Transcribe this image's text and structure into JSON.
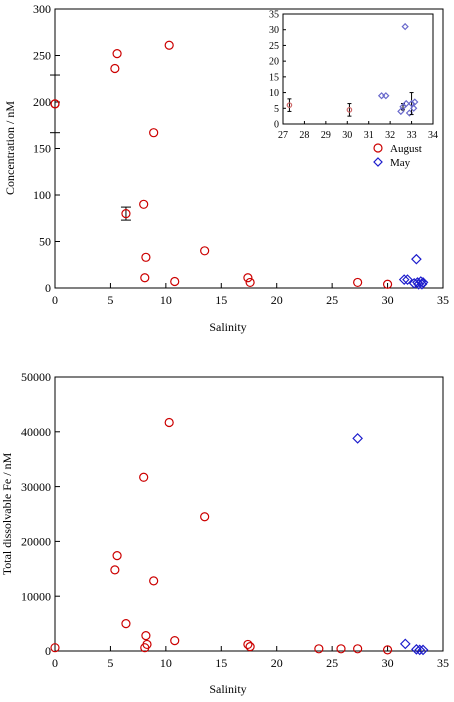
{
  "chart_data": [
    {
      "type": "scatter",
      "xlabel": "Salinity",
      "ylabel": "Concentration / nM",
      "xlim": [
        0,
        35
      ],
      "ylim": [
        0,
        300
      ],
      "xticks": [
        "0",
        "5",
        "10",
        "15",
        "20",
        "25",
        "30",
        "35"
      ],
      "yticks": [
        "0",
        "50",
        "100",
        "150",
        "200",
        "250",
        "300"
      ],
      "legend": {
        "placement": "right",
        "entries": [
          "August",
          "May"
        ]
      },
      "series": [
        {
          "name": "August",
          "marker": "circle",
          "color": "#cc0000",
          "points": [
            {
              "x": 0.0,
              "y": 198,
              "err": 0
            },
            {
              "x": 0.0,
              "y": 198,
              "err": 31
            },
            {
              "x": 5.4,
              "y": 236,
              "err": 0
            },
            {
              "x": 5.6,
              "y": 252,
              "err": 0
            },
            {
              "x": 6.4,
              "y": 80,
              "err": 7
            },
            {
              "x": 8.0,
              "y": 90,
              "err": 0
            },
            {
              "x": 8.2,
              "y": 33,
              "err": 0
            },
            {
              "x": 8.1,
              "y": 11,
              "err": 0
            },
            {
              "x": 8.9,
              "y": 167,
              "err": 0
            },
            {
              "x": 10.3,
              "y": 261,
              "err": 0
            },
            {
              "x": 10.8,
              "y": 7,
              "err": 0
            },
            {
              "x": 13.5,
              "y": 40,
              "err": 0
            },
            {
              "x": 17.4,
              "y": 11,
              "err": 0
            },
            {
              "x": 17.6,
              "y": 6,
              "err": 0
            },
            {
              "x": 27.3,
              "y": 6,
              "err": 0
            },
            {
              "x": 30.0,
              "y": 4,
              "err": 0
            }
          ]
        },
        {
          "name": "May",
          "marker": "diamond",
          "color": "#1c1ccc",
          "points": [
            {
              "x": 31.5,
              "y": 9
            },
            {
              "x": 31.8,
              "y": 9
            },
            {
              "x": 32.4,
              "y": 5
            },
            {
              "x": 32.6,
              "y": 31
            },
            {
              "x": 32.7,
              "y": 6
            },
            {
              "x": 32.8,
              "y": 4
            },
            {
              "x": 33.0,
              "y": 7
            },
            {
              "x": 33.1,
              "y": 4
            },
            {
              "x": 33.2,
              "y": 6
            }
          ]
        }
      ],
      "inset": {
        "xlim": [
          27,
          34
        ],
        "ylim": [
          0,
          35
        ],
        "xticks": [
          "27",
          "28",
          "29",
          "30",
          "31",
          "32",
          "33",
          "34"
        ],
        "yticks": [
          "0",
          "5",
          "10",
          "15",
          "20",
          "25",
          "30",
          "35"
        ],
        "august_points": [
          {
            "x": 27.3,
            "y": 6,
            "err": 2
          },
          {
            "x": 30.1,
            "y": 4.5,
            "err": 2
          }
        ],
        "may_points": [
          {
            "x": 31.6,
            "y": 9,
            "err": 0
          },
          {
            "x": 31.8,
            "y": 9,
            "err": 0
          },
          {
            "x": 32.5,
            "y": 4,
            "err": 0
          },
          {
            "x": 32.6,
            "y": 5.5,
            "err": 1
          },
          {
            "x": 32.7,
            "y": 31,
            "err": 0
          },
          {
            "x": 32.75,
            "y": 6.5,
            "err": 0
          },
          {
            "x": 32.9,
            "y": 3.5,
            "err": 0
          },
          {
            "x": 33.0,
            "y": 6.5,
            "err": 3.5
          },
          {
            "x": 33.1,
            "y": 5,
            "err": 0
          },
          {
            "x": 33.15,
            "y": 7,
            "err": 0
          }
        ]
      }
    },
    {
      "type": "scatter",
      "xlabel": "Salinity",
      "ylabel": "Total dissolvable Fe / nM",
      "xlim": [
        0,
        35
      ],
      "ylim": [
        0,
        50000
      ],
      "xticks": [
        "0",
        "5",
        "10",
        "15",
        "20",
        "25",
        "30",
        "35"
      ],
      "yticks": [
        "0",
        "10000",
        "20000",
        "30000",
        "40000",
        "50000"
      ],
      "series": [
        {
          "name": "August",
          "marker": "circle",
          "color": "#cc0000",
          "points": [
            {
              "x": 0.0,
              "y": 600
            },
            {
              "x": 5.4,
              "y": 14800
            },
            {
              "x": 5.6,
              "y": 17400
            },
            {
              "x": 6.4,
              "y": 5000
            },
            {
              "x": 8.0,
              "y": 31700
            },
            {
              "x": 8.1,
              "y": 600
            },
            {
              "x": 8.2,
              "y": 2800
            },
            {
              "x": 8.3,
              "y": 1200
            },
            {
              "x": 8.9,
              "y": 12800
            },
            {
              "x": 10.3,
              "y": 41700
            },
            {
              "x": 10.8,
              "y": 1900
            },
            {
              "x": 13.5,
              "y": 24500
            },
            {
              "x": 17.4,
              "y": 1200
            },
            {
              "x": 17.6,
              "y": 800
            },
            {
              "x": 23.8,
              "y": 400
            },
            {
              "x": 25.8,
              "y": 400
            },
            {
              "x": 27.3,
              "y": 400
            },
            {
              "x": 30.0,
              "y": 200
            }
          ]
        },
        {
          "name": "May",
          "marker": "diamond",
          "color": "#1c1ccc",
          "points": [
            {
              "x": 27.3,
              "y": 38800
            },
            {
              "x": 31.6,
              "y": 1300
            },
            {
              "x": 32.6,
              "y": 300
            },
            {
              "x": 32.9,
              "y": 200
            },
            {
              "x": 33.2,
              "y": 200
            }
          ]
        }
      ]
    }
  ]
}
